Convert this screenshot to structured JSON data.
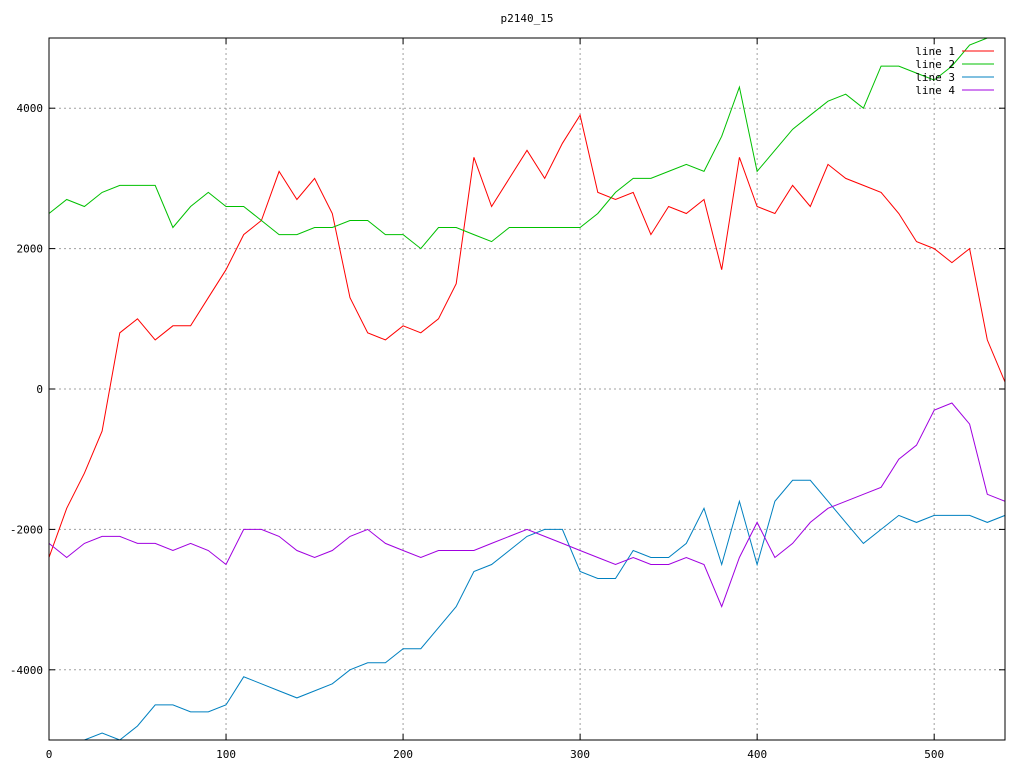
{
  "chart_data": {
    "type": "line",
    "title": "p2140_15",
    "xlabel": "",
    "ylabel": "",
    "xlim": [
      0,
      540
    ],
    "ylim": [
      -5000,
      5000
    ],
    "grid": true,
    "legend_position": "top-right",
    "x_ticks": [
      0,
      100,
      200,
      300,
      400,
      500
    ],
    "y_ticks": [
      -4000,
      -2000,
      0,
      2000,
      4000
    ],
    "x": [
      0,
      10,
      20,
      30,
      40,
      50,
      60,
      70,
      80,
      90,
      100,
      110,
      120,
      130,
      140,
      150,
      160,
      170,
      180,
      190,
      200,
      210,
      220,
      230,
      240,
      250,
      260,
      270,
      280,
      290,
      300,
      310,
      320,
      330,
      340,
      350,
      360,
      370,
      380,
      390,
      400,
      410,
      420,
      430,
      440,
      450,
      460,
      470,
      480,
      490,
      500,
      510,
      520,
      530,
      540
    ],
    "series": [
      {
        "name": "line 1",
        "color": "#ff0000",
        "values": [
          -2400,
          -1700,
          -1200,
          -600,
          800,
          1000,
          700,
          900,
          900,
          1300,
          1700,
          2200,
          2400,
          3100,
          2700,
          3000,
          2500,
          1300,
          800,
          700,
          900,
          800,
          1000,
          1500,
          3300,
          2600,
          3000,
          3400,
          3000,
          3500,
          3900,
          2800,
          2700,
          2800,
          2200,
          2600,
          2500,
          2700,
          1700,
          3300,
          2600,
          2500,
          2900,
          2600,
          3200,
          3000,
          2900,
          2800,
          2500,
          2100,
          2000,
          1800,
          2000,
          700,
          100
        ]
      },
      {
        "name": "line 2",
        "color": "#00c000",
        "values": [
          2500,
          2700,
          2600,
          2800,
          2900,
          2900,
          2900,
          2300,
          2600,
          2800,
          2600,
          2600,
          2400,
          2200,
          2200,
          2300,
          2300,
          2400,
          2400,
          2200,
          2200,
          2000,
          2300,
          2300,
          2200,
          2100,
          2300,
          2300,
          2300,
          2300,
          2300,
          2500,
          2800,
          3000,
          3000,
          3100,
          3200,
          3100,
          3600,
          4300,
          3100,
          3400,
          3700,
          3900,
          4100,
          4200,
          4000,
          4600,
          4600,
          4500,
          4400,
          4600,
          4900,
          5000,
          5000
        ]
      },
      {
        "name": "line 3",
        "color": "#0080c0",
        "values": [
          -5000,
          -5000,
          -5000,
          -4900,
          -5000,
          -4800,
          -4500,
          -4500,
          -4600,
          -4600,
          -4500,
          -4100,
          -4200,
          -4300,
          -4400,
          -4300,
          -4200,
          -4000,
          -3900,
          -3900,
          -3700,
          -3700,
          -3400,
          -3100,
          -2600,
          -2500,
          -2300,
          -2100,
          -2000,
          -2000,
          -2600,
          -2700,
          -2700,
          -2300,
          -2400,
          -2400,
          -2200,
          -1700,
          -2500,
          -1600,
          -2500,
          -1600,
          -1300,
          -1300,
          -1600,
          -1900,
          -2200,
          -2000,
          -1800,
          -1900,
          -1800,
          -1800,
          -1800,
          -1900,
          -1800
        ]
      },
      {
        "name": "line 4",
        "color": "#a000e0",
        "values": [
          -2200,
          -2400,
          -2200,
          -2100,
          -2100,
          -2200,
          -2200,
          -2300,
          -2200,
          -2300,
          -2500,
          -2000,
          -2000,
          -2100,
          -2300,
          -2400,
          -2300,
          -2100,
          -2000,
          -2200,
          -2300,
          -2400,
          -2300,
          -2300,
          -2300,
          -2200,
          -2100,
          -2000,
          -2100,
          -2200,
          -2300,
          -2400,
          -2500,
          -2400,
          -2500,
          -2500,
          -2400,
          -2500,
          -3100,
          -2400,
          -1900,
          -2400,
          -2200,
          -1900,
          -1700,
          -1600,
          -1500,
          -1400,
          -1000,
          -800,
          -300,
          -200,
          -500,
          -1500,
          -1600
        ]
      }
    ]
  }
}
